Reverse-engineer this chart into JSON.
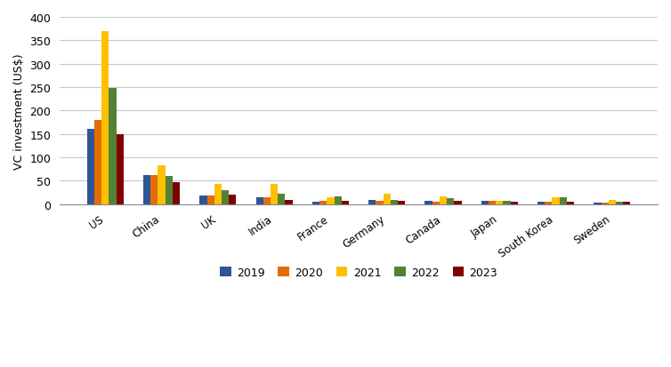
{
  "categories": [
    "US",
    "China",
    "UK",
    "India",
    "France",
    "Germany",
    "Canada",
    "Japan",
    "South Korea",
    "Sweden"
  ],
  "years": [
    "2019",
    "2020",
    "2021",
    "2022",
    "2023"
  ],
  "colors": [
    "#2e5594",
    "#e36c09",
    "#ffc000",
    "#538135",
    "#7f0000"
  ],
  "values": {
    "2019": [
      160,
      63,
      18,
      15,
      6,
      9,
      7,
      7,
      5,
      3
    ],
    "2020": [
      180,
      62,
      18,
      15,
      7,
      8,
      6,
      7,
      5,
      4
    ],
    "2021": [
      370,
      83,
      43,
      43,
      14,
      22,
      16,
      8,
      15,
      9
    ],
    "2022": [
      248,
      60,
      30,
      23,
      16,
      10,
      12,
      7,
      15,
      6
    ],
    "2023": [
      150,
      48,
      20,
      9,
      8,
      8,
      7,
      6,
      5,
      6
    ]
  },
  "ylabel": "VC investment (US$)",
  "ylim": [
    0,
    400
  ],
  "yticks": [
    0,
    50,
    100,
    150,
    200,
    250,
    300,
    350,
    400
  ],
  "legend_labels": [
    "2019",
    "2020",
    "2021",
    "2022",
    "2023"
  ],
  "bar_width": 0.13,
  "background_color": "#ffffff",
  "grid_color": "#c8c8c8"
}
